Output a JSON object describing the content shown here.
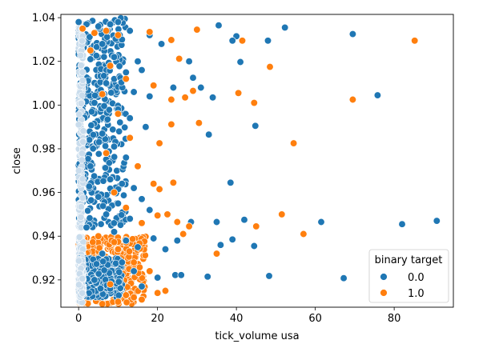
{
  "chart_data": {
    "type": "scatter",
    "xlabel": "tick_volume usa",
    "ylabel": "close",
    "xlim": [
      -4.5,
      95
    ],
    "ylim": [
      0.9075,
      1.0415
    ],
    "xticks": [
      0,
      20,
      40,
      60,
      80
    ],
    "yticks": [
      0.92,
      0.94,
      0.96,
      0.98,
      1.0,
      1.02,
      1.04
    ],
    "ytick_labels": [
      "0.92",
      "0.94",
      "0.96",
      "0.98",
      "1.00",
      "1.02",
      "1.04"
    ],
    "grid": false,
    "legend": {
      "title": "binary target",
      "placement": "lower right"
    },
    "series": [
      {
        "name": "0.0",
        "color": "#1f77b4",
        "points": [
          [
            0,
            1.038
          ],
          [
            2,
            1.037
          ],
          [
            5,
            1.036
          ],
          [
            8,
            1.037
          ],
          [
            10,
            1.038
          ],
          [
            13,
            1.034
          ],
          [
            11,
            1.03
          ],
          [
            6,
            1.028
          ],
          [
            3,
            1.021
          ],
          [
            9,
            1.022
          ],
          [
            12,
            1.015
          ],
          [
            15,
            1.02
          ],
          [
            16,
            1.016
          ],
          [
            7,
            1.01
          ],
          [
            14,
            1.006
          ],
          [
            18,
            1.004
          ],
          [
            4,
            1.001
          ],
          [
            10,
            0.998
          ],
          [
            13,
            0.994
          ],
          [
            17,
            0.99
          ],
          [
            6,
            0.987
          ],
          [
            9,
            0.981
          ],
          [
            12,
            0.976
          ],
          [
            3,
            0.972
          ],
          [
            8,
            0.966
          ],
          [
            11,
            0.964
          ],
          [
            14,
            0.962
          ],
          [
            5,
            0.958
          ],
          [
            10,
            0.955
          ],
          [
            16,
            0.957
          ],
          [
            7,
            0.95
          ],
          [
            13,
            0.948
          ],
          [
            18,
            0.952
          ],
          [
            2,
            0.944
          ],
          [
            9,
            0.942
          ],
          [
            12,
            0.938
          ],
          [
            15,
            0.935
          ],
          [
            19,
            0.939
          ],
          [
            6,
            0.932
          ],
          [
            11,
            0.928
          ],
          [
            14,
            0.924
          ],
          [
            4,
            0.92
          ],
          [
            8,
            0.916
          ],
          [
            12,
            0.913
          ],
          [
            16,
            0.917
          ],
          [
            20,
            0.921
          ],
          [
            18,
            1.032
          ],
          [
            21,
            1.028
          ],
          [
            35.5,
            1.0365
          ],
          [
            40,
            1.0315
          ],
          [
            39,
            1.0295
          ],
          [
            48,
            1.0295
          ],
          [
            52.3,
            1.0355
          ],
          [
            69.5,
            1.0325
          ],
          [
            28,
            1.02
          ],
          [
            41,
            1.0197
          ],
          [
            29,
            1.0125
          ],
          [
            31,
            1.008
          ],
          [
            34,
            1.0035
          ],
          [
            24,
            1.008
          ],
          [
            75.8,
            1.0045
          ],
          [
            44.8,
            0.9905
          ],
          [
            33,
            0.9865
          ],
          [
            38.5,
            0.9645
          ],
          [
            28.5,
            0.9465
          ],
          [
            35,
            0.9465
          ],
          [
            42,
            0.9475
          ],
          [
            61.5,
            0.9465
          ],
          [
            82,
            0.9455
          ],
          [
            90.8,
            0.947
          ],
          [
            36,
            0.936
          ],
          [
            39,
            0.9385
          ],
          [
            44.5,
            0.9355
          ],
          [
            32.7,
            0.9215
          ],
          [
            48.3,
            0.9218
          ],
          [
            67.2,
            0.9208
          ],
          [
            24.5,
            0.9222
          ],
          [
            26,
            0.9222
          ],
          [
            22,
            0.934
          ],
          [
            25,
            0.938
          ]
        ]
      },
      {
        "name": "1.0",
        "color": "#ff7f0e",
        "points": [
          [
            1,
            1.035
          ],
          [
            4,
            1.033
          ],
          [
            7,
            1.034
          ],
          [
            10,
            1.032
          ],
          [
            3,
            1.025
          ],
          [
            8,
            1.018
          ],
          [
            12,
            1.012
          ],
          [
            6,
            1.005
          ],
          [
            10,
            0.996
          ],
          [
            13,
            0.985
          ],
          [
            7,
            0.978
          ],
          [
            15,
            0.972
          ],
          [
            9,
            0.96
          ],
          [
            12,
            0.953
          ],
          [
            16,
            0.946
          ],
          [
            5,
            0.94
          ],
          [
            10,
            0.934
          ],
          [
            14,
            0.928
          ],
          [
            18,
            0.924
          ],
          [
            8,
            0.918
          ],
          [
            12,
            0.913
          ],
          [
            16,
            0.911
          ],
          [
            20,
            0.914
          ],
          [
            6,
            0.909
          ],
          [
            10,
            0.91
          ],
          [
            14,
            0.912
          ],
          [
            22,
            0.915
          ],
          [
            18,
            1.0335
          ],
          [
            23.5,
            1.0298
          ],
          [
            30,
            1.0345
          ],
          [
            41.5,
            1.0295
          ],
          [
            85.2,
            1.0295
          ],
          [
            25.5,
            1.0212
          ],
          [
            48.5,
            1.0175
          ],
          [
            19,
            1.009
          ],
          [
            29,
            1.0065
          ],
          [
            27,
            1.0035
          ],
          [
            23.5,
            1.0025
          ],
          [
            40.5,
            1.0055
          ],
          [
            44.5,
            1.001
          ],
          [
            69.5,
            1.0025
          ],
          [
            30.5,
            0.9918
          ],
          [
            23.5,
            0.9912
          ],
          [
            20.5,
            0.9825
          ],
          [
            54.5,
            0.9825
          ],
          [
            19,
            0.964
          ],
          [
            20.5,
            0.9615
          ],
          [
            24,
            0.9645
          ],
          [
            51.5,
            0.95
          ],
          [
            45,
            0.9445
          ],
          [
            57,
            0.941
          ],
          [
            25,
            0.9465
          ],
          [
            28,
            0.9445
          ],
          [
            26.5,
            0.941
          ],
          [
            35,
            0.932
          ],
          [
            20,
            0.9495
          ],
          [
            22.5,
            0.95
          ]
        ]
      }
    ],
    "dense_bands": [
      {
        "color": "#1f77b4",
        "x_max": 12,
        "y_range": [
          0.944,
          1.04
        ]
      },
      {
        "color": "#ff7f0e",
        "x_max": 17,
        "y_range": [
          0.909,
          0.94
        ]
      },
      {
        "color": "#1f77b4",
        "x_max": 11,
        "y_range": [
          0.912,
          0.93
        ]
      }
    ]
  }
}
